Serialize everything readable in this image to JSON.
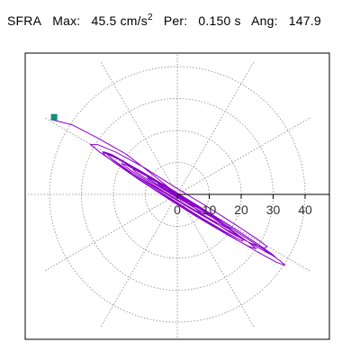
{
  "header": {
    "station": "SFRA",
    "max_label": "Max:",
    "max_value": "45.5 cm/s",
    "max_exp": "2",
    "per_label": "Per:",
    "per_value": "0.150 s",
    "ang_label": "Ang:",
    "ang_value": "147.9"
  },
  "colors": {
    "trace": "#8a00c8",
    "marker": "#12907a",
    "grid": "#888888",
    "axis": "#000000"
  },
  "chart_data": {
    "type": "polar",
    "title": "SFRA",
    "r_ticks": [
      0,
      10,
      20,
      30,
      40
    ],
    "r_range": [
      0,
      48
    ],
    "angular_grid_deg": [
      0,
      30,
      60,
      90,
      120,
      150,
      180,
      210,
      240,
      270,
      300,
      330
    ],
    "grid": "dotted",
    "peak": {
      "value": 45.5,
      "unit": "cm/s^2",
      "angle_deg": 147.9
    },
    "series": [
      {
        "points": [
          [
            -39.7,
            23.5
          ],
          [
            -33.0,
            21.8
          ],
          [
            -25.0,
            17.7
          ],
          [
            -16.0,
            12.6
          ],
          [
            -7.2,
            5.8
          ],
          [
            0.0,
            0.0
          ],
          [
            8.2,
            -6.4
          ],
          [
            16.3,
            -11.8
          ],
          [
            23.0,
            -15.3
          ],
          [
            27.3,
            -16.8
          ],
          [
            28.1,
            -16.3
          ],
          [
            25.0,
            -14.0
          ],
          [
            18.1,
            -9.4
          ],
          [
            9.0,
            -3.6
          ],
          [
            0.0,
            1.8
          ],
          [
            -10.4,
            8.4
          ],
          [
            -19.2,
            13.2
          ],
          [
            -25.0,
            15.6
          ],
          [
            -27.2,
            15.6
          ],
          [
            -24.4,
            13.3
          ],
          [
            -16.8,
            8.2
          ],
          [
            -6.2,
            1.8
          ],
          [
            5.1,
            -5.0
          ],
          [
            15.2,
            -10.9
          ],
          [
            23.2,
            -15.5
          ],
          [
            28.3,
            -18.3
          ],
          [
            30.6,
            -19.5
          ],
          [
            29.7,
            -18.7
          ],
          [
            25.6,
            -15.8
          ],
          [
            18.3,
            -11.0
          ],
          [
            8.5,
            -4.8
          ],
          [
            -2.3,
            1.9
          ],
          [
            -12.3,
            7.8
          ],
          [
            -19.8,
            11.9
          ],
          [
            -23.4,
            13.3
          ],
          [
            -22.3,
            11.9
          ],
          [
            -16.4,
            7.7
          ],
          [
            -6.9,
            1.4
          ],
          [
            4.4,
            -5.6
          ],
          [
            15.6,
            -12.4
          ],
          [
            24.9,
            -17.9
          ],
          [
            31.0,
            -21.2
          ],
          [
            33.7,
            -22.2
          ],
          [
            32.2,
            -20.8
          ],
          [
            26.8,
            -17.0
          ],
          [
            18.4,
            -11.6
          ],
          [
            8.3,
            -5.1
          ],
          [
            -2.0,
            1.3
          ],
          [
            -11.5,
            7.0
          ],
          [
            -18.6,
            11.1
          ],
          [
            -22.7,
            13.0
          ],
          [
            -23.1,
            12.6
          ],
          [
            -19.6,
            9.9
          ],
          [
            -12.7,
            5.1
          ],
          [
            -3.4,
            -1.0
          ],
          [
            6.6,
            -7.3
          ],
          [
            15.8,
            -12.7
          ],
          [
            22.2,
            -16.2
          ],
          [
            24.7,
            -17.0
          ],
          [
            22.6,
            -15.2
          ],
          [
            16.3,
            -10.7
          ],
          [
            7.1,
            -4.6
          ],
          [
            -3.5,
            2.3
          ],
          [
            -13.4,
            8.4
          ],
          [
            -20.3,
            12.4
          ],
          [
            -22.8,
            13.3
          ],
          [
            -20.3,
            11.0
          ],
          [
            -13.4,
            6.1
          ],
          [
            -3.6,
            -0.3
          ],
          [
            6.9,
            -6.9
          ],
          [
            15.5,
            -12.0
          ],
          [
            20.4,
            -14.6
          ],
          [
            20.6,
            -14.2
          ],
          [
            16.0,
            -10.7
          ],
          [
            7.8,
            -5.0
          ],
          [
            -1.7,
            1.0
          ],
          [
            -10.4,
            6.2
          ],
          [
            -16.1,
            9.3
          ],
          [
            -17.4,
            9.6
          ],
          [
            -14.0,
            7.1
          ],
          [
            -6.8,
            2.5
          ],
          [
            2.2,
            -3.0
          ],
          [
            10.5,
            -7.8
          ],
          [
            15.7,
            -10.6
          ],
          [
            16.6,
            -10.6
          ],
          [
            12.9,
            -7.9
          ],
          [
            5.8,
            -3.3
          ],
          [
            -2.6,
            1.8
          ],
          [
            -9.9,
            6.0
          ],
          [
            -13.9,
            8.0
          ],
          [
            -13.4,
            7.3
          ],
          [
            -8.5,
            4.1
          ],
          [
            -0.9,
            -0.5
          ],
          [
            6.8,
            -5.0
          ],
          [
            11.9,
            -7.7
          ],
          [
            12.8,
            -7.9
          ],
          [
            9.3,
            -5.5
          ],
          [
            2.8,
            -1.5
          ],
          [
            -4.0,
            2.6
          ],
          [
            -8.6,
            5.0
          ],
          [
            -9.3,
            5.1
          ],
          [
            -6.0,
            2.9
          ],
          [
            -0.5,
            -0.4
          ],
          [
            4.9,
            -3.5
          ],
          [
            8.0,
            -5.0
          ],
          [
            7.5,
            -4.4
          ],
          [
            3.9,
            -2.0
          ],
          [
            -1.0,
            1.0
          ],
          [
            -4.9,
            3.0
          ],
          [
            -6.1,
            3.4
          ],
          [
            -4.2,
            2.1
          ],
          [
            -0.4,
            -0.3
          ],
          [
            3.2,
            -2.2
          ],
          [
            4.7,
            -2.8
          ],
          [
            3.5,
            -1.9
          ],
          [
            0.6,
            0.1
          ],
          [
            -2.2,
            1.6
          ],
          [
            -3.2,
            1.9
          ],
          [
            -2.0,
            1.0
          ],
          [
            0.2,
            -0.3
          ],
          [
            1.9,
            -1.2
          ],
          [
            2.1,
            -1.1
          ],
          [
            0.9,
            -0.3
          ],
          [
            -0.7,
            0.6
          ],
          [
            -1.5,
            0.8
          ],
          [
            -1.0,
            0.4
          ],
          [
            0.2,
            -0.3
          ],
          [
            1.0,
            -0.6
          ],
          [
            0.8,
            -0.3
          ],
          [
            0.0,
            0.0
          ]
        ]
      }
    ]
  }
}
